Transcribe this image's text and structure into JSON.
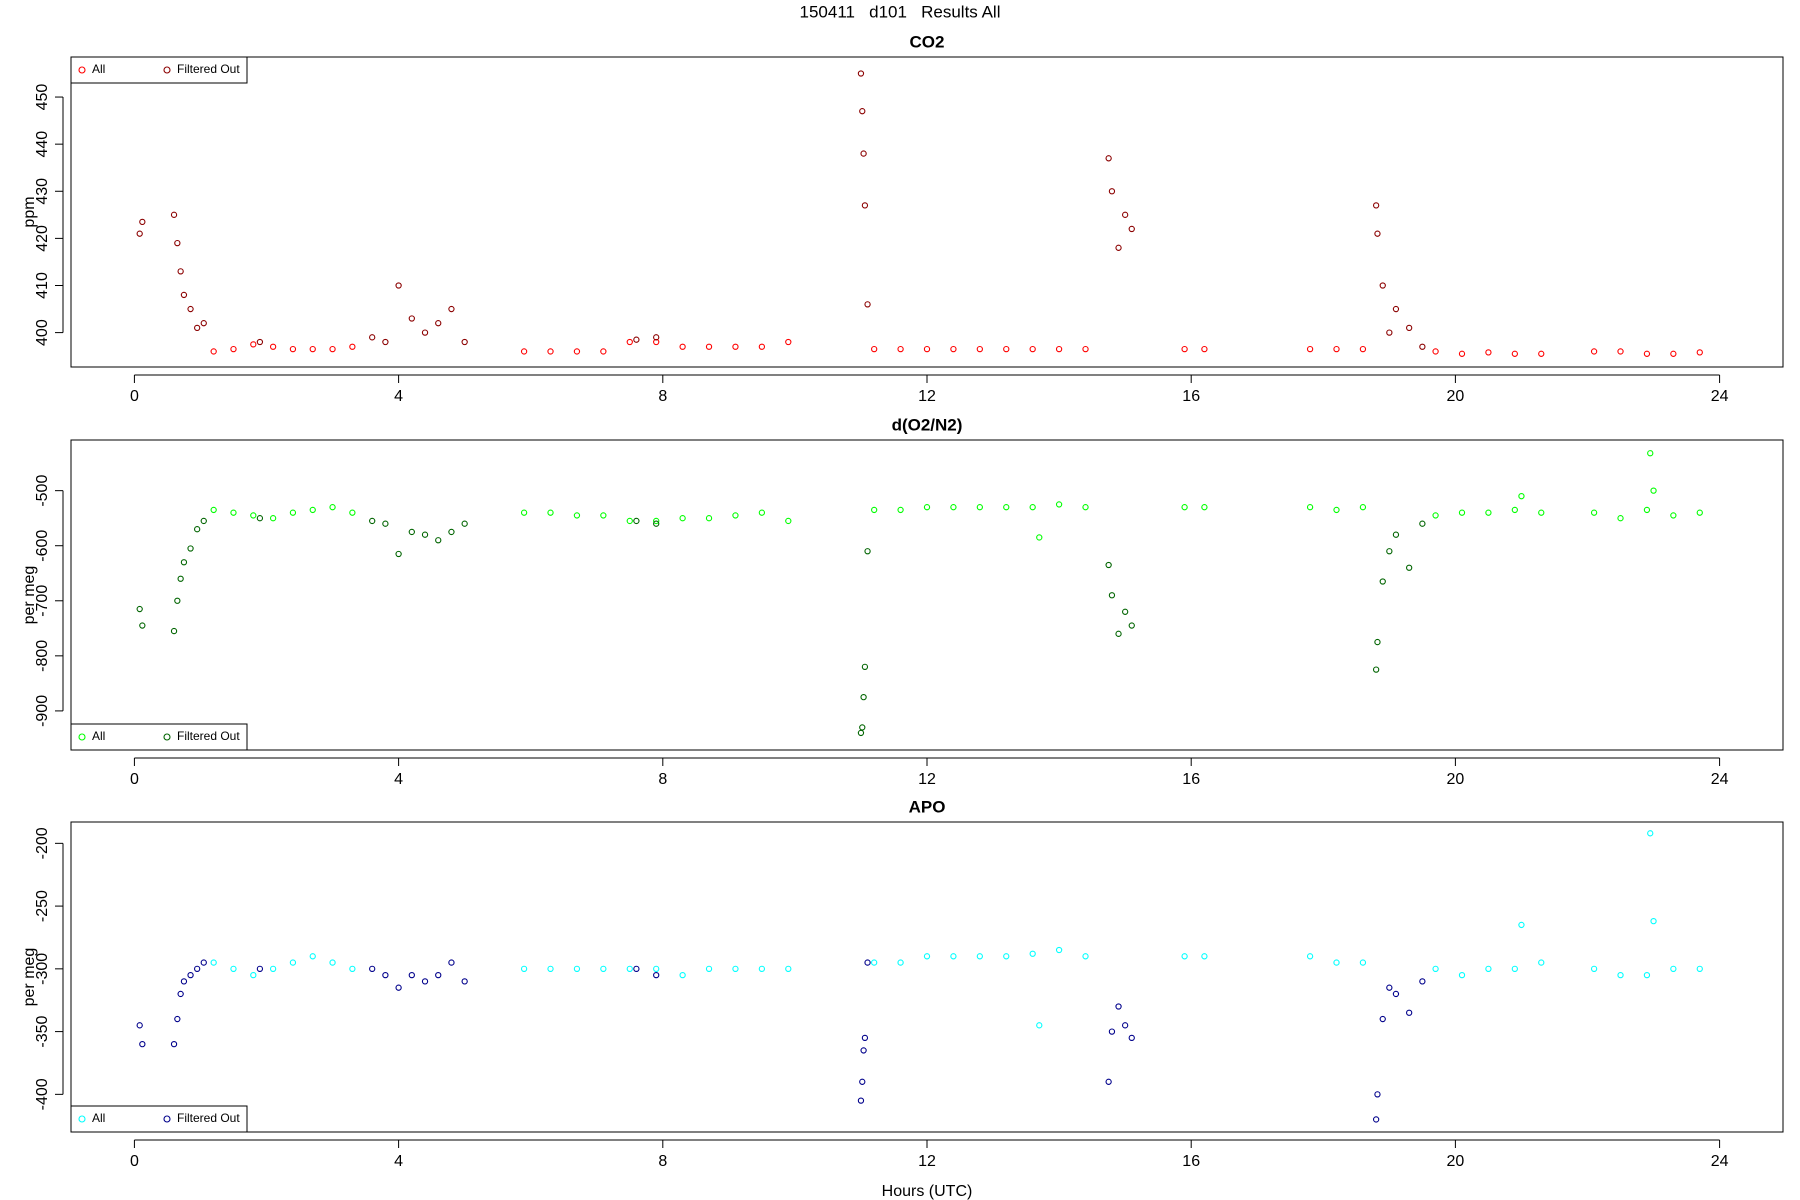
{
  "title": "150411   d101   Results All",
  "chart_data": [
    {
      "type": "scatter",
      "title": "CO2",
      "ylabel": "ppm",
      "legend": "topleft",
      "xlim": [
        -0.96,
        24.96
      ],
      "xticks": [
        0,
        4,
        8,
        12,
        16,
        20,
        24
      ],
      "ylim": [
        392.7,
        458.5
      ],
      "yticks": [
        400,
        410,
        420,
        430,
        440,
        450
      ],
      "series": [
        {
          "name": "All",
          "color": "#ff0000",
          "x": [
            1.2,
            1.5,
            1.8,
            2.1,
            2.4,
            2.7,
            3.0,
            3.3,
            5.9,
            6.3,
            6.7,
            7.1,
            7.5,
            7.9,
            8.3,
            8.7,
            9.1,
            9.5,
            9.9,
            11.2,
            11.6,
            12.0,
            12.4,
            12.8,
            13.2,
            13.6,
            14.0,
            14.4,
            15.9,
            16.2,
            17.8,
            18.2,
            18.6,
            19.7,
            20.1,
            20.5,
            20.9,
            21.3,
            22.1,
            22.5,
            22.9,
            23.3,
            23.7
          ],
          "values": [
            396,
            396.5,
            397.5,
            397,
            396.5,
            396.5,
            396.5,
            397,
            396,
            396,
            396,
            396,
            398,
            398,
            397,
            397,
            397,
            397,
            398,
            396.5,
            396.5,
            396.5,
            396.5,
            396.5,
            396.5,
            396.5,
            396.5,
            396.5,
            396.5,
            396.5,
            396.5,
            396.5,
            396.5,
            396,
            395.5,
            395.8,
            395.5,
            395.5,
            396,
            396,
            395.5,
            395.5,
            395.8
          ]
        },
        {
          "name": "Filtered Out",
          "color": "#8b0000",
          "x": [
            0.08,
            0.12,
            0.6,
            0.65,
            0.7,
            0.75,
            0.85,
            0.95,
            1.05,
            1.9,
            3.6,
            3.8,
            4.0,
            4.2,
            4.4,
            4.6,
            4.8,
            5.0,
            7.6,
            7.9,
            11.0,
            11.02,
            11.04,
            11.06,
            11.1,
            14.75,
            14.8,
            14.9,
            15.0,
            15.1,
            18.8,
            18.82,
            18.9,
            19.0,
            19.1,
            19.3,
            19.5
          ],
          "values": [
            421,
            423.5,
            425,
            419,
            413,
            408,
            405,
            401,
            402,
            398,
            399,
            398,
            410,
            403,
            400,
            402,
            405,
            398,
            398.5,
            399,
            455,
            447,
            438,
            427,
            406,
            437,
            430,
            418,
            425,
            422,
            427,
            421,
            410,
            400,
            405,
            401,
            397
          ]
        }
      ]
    },
    {
      "type": "scatter",
      "title": "d(O2/N2)",
      "ylabel": "per meg",
      "legend": "bottomleft",
      "xlim": [
        -0.96,
        24.96
      ],
      "xticks": [
        0,
        4,
        8,
        12,
        16,
        20,
        24
      ],
      "ylim": [
        -971,
        -408
      ],
      "yticks": [
        -500,
        -600,
        -700,
        -800,
        -900
      ],
      "series": [
        {
          "name": "All",
          "color": "#00ff00",
          "x": [
            1.2,
            1.5,
            1.8,
            2.1,
            2.4,
            2.7,
            3.0,
            3.3,
            5.9,
            6.3,
            6.7,
            7.1,
            7.5,
            7.9,
            8.3,
            8.7,
            9.1,
            9.5,
            9.9,
            11.2,
            11.6,
            12.0,
            12.4,
            12.8,
            13.2,
            13.6,
            14.0,
            14.4,
            15.9,
            16.2,
            17.8,
            18.2,
            18.6,
            19.7,
            20.1,
            20.5,
            20.9,
            21.3,
            22.1,
            22.5,
            22.9,
            23.3,
            23.7,
            13.7,
            21.0,
            22.95,
            23.0
          ],
          "values": [
            -535,
            -540,
            -545,
            -550,
            -540,
            -535,
            -530,
            -540,
            -540,
            -540,
            -545,
            -545,
            -555,
            -555,
            -550,
            -550,
            -545,
            -540,
            -555,
            -535,
            -535,
            -530,
            -530,
            -530,
            -530,
            -530,
            -525,
            -530,
            -530,
            -530,
            -530,
            -535,
            -530,
            -545,
            -540,
            -540,
            -535,
            -540,
            -540,
            -550,
            -535,
            -545,
            -540,
            -585,
            -510,
            -432,
            -500
          ]
        },
        {
          "name": "Filtered Out",
          "color": "#006400",
          "x": [
            0.08,
            0.12,
            0.6,
            0.65,
            0.7,
            0.75,
            0.85,
            0.95,
            1.05,
            1.9,
            3.6,
            3.8,
            4.0,
            4.2,
            4.4,
            4.6,
            4.8,
            5.0,
            7.6,
            7.9,
            11.0,
            11.02,
            11.04,
            11.06,
            11.1,
            14.75,
            14.8,
            14.9,
            15.0,
            15.1,
            18.8,
            18.82,
            18.9,
            19.0,
            19.1,
            19.3,
            19.5
          ],
          "values": [
            -715,
            -745,
            -755,
            -700,
            -660,
            -630,
            -605,
            -570,
            -555,
            -550,
            -555,
            -560,
            -615,
            -575,
            -580,
            -590,
            -575,
            -560,
            -555,
            -560,
            -940,
            -930,
            -875,
            -820,
            -610,
            -635,
            -690,
            -760,
            -720,
            -745,
            -825,
            -775,
            -665,
            -610,
            -580,
            -640,
            -560
          ]
        }
      ]
    },
    {
      "type": "scatter",
      "title": "APO",
      "ylabel": "per meg",
      "xlabel": "Hours (UTC)",
      "legend": "bottomleft",
      "xlim": [
        -0.96,
        24.96
      ],
      "xticks": [
        0,
        4,
        8,
        12,
        16,
        20,
        24
      ],
      "ylim": [
        -430,
        -183
      ],
      "yticks": [
        -200,
        -250,
        -300,
        -350,
        -400
      ],
      "series": [
        {
          "name": "All",
          "color": "#00ffff",
          "x": [
            1.2,
            1.5,
            1.8,
            2.1,
            2.4,
            2.7,
            3.0,
            3.3,
            5.9,
            6.3,
            6.7,
            7.1,
            7.5,
            7.9,
            8.3,
            8.7,
            9.1,
            9.5,
            9.9,
            11.2,
            11.6,
            12.0,
            12.4,
            12.8,
            13.2,
            13.6,
            14.0,
            14.4,
            15.9,
            16.2,
            17.8,
            18.2,
            18.6,
            19.7,
            20.1,
            20.5,
            20.9,
            21.3,
            22.1,
            22.5,
            22.9,
            23.3,
            23.7,
            13.7,
            21.0,
            22.95,
            23.0
          ],
          "values": [
            -295,
            -300,
            -305,
            -300,
            -295,
            -290,
            -295,
            -300,
            -300,
            -300,
            -300,
            -300,
            -300,
            -300,
            -305,
            -300,
            -300,
            -300,
            -300,
            -295,
            -295,
            -290,
            -290,
            -290,
            -290,
            -288,
            -285,
            -290,
            -290,
            -290,
            -290,
            -295,
            -295,
            -300,
            -305,
            -300,
            -300,
            -295,
            -300,
            -305,
            -305,
            -300,
            -300,
            -345,
            -265,
            -192,
            -262
          ]
        },
        {
          "name": "Filtered Out",
          "color": "#00008b",
          "x": [
            0.08,
            0.12,
            0.6,
            0.65,
            0.7,
            0.75,
            0.85,
            0.95,
            1.05,
            1.9,
            3.6,
            3.8,
            4.0,
            4.2,
            4.4,
            4.6,
            4.8,
            5.0,
            7.6,
            7.9,
            11.0,
            11.02,
            11.04,
            11.06,
            11.1,
            14.75,
            14.8,
            14.9,
            15.0,
            15.1,
            18.8,
            18.82,
            18.9,
            19.0,
            19.1,
            19.3,
            19.5
          ],
          "values": [
            -345,
            -360,
            -360,
            -340,
            -320,
            -310,
            -305,
            -300,
            -295,
            -300,
            -300,
            -305,
            -315,
            -305,
            -310,
            -305,
            -295,
            -310,
            -300,
            -305,
            -405,
            -390,
            -365,
            -355,
            -295,
            -390,
            -350,
            -330,
            -345,
            -355,
            -420,
            -400,
            -340,
            -315,
            -320,
            -335,
            -310
          ]
        }
      ]
    }
  ]
}
